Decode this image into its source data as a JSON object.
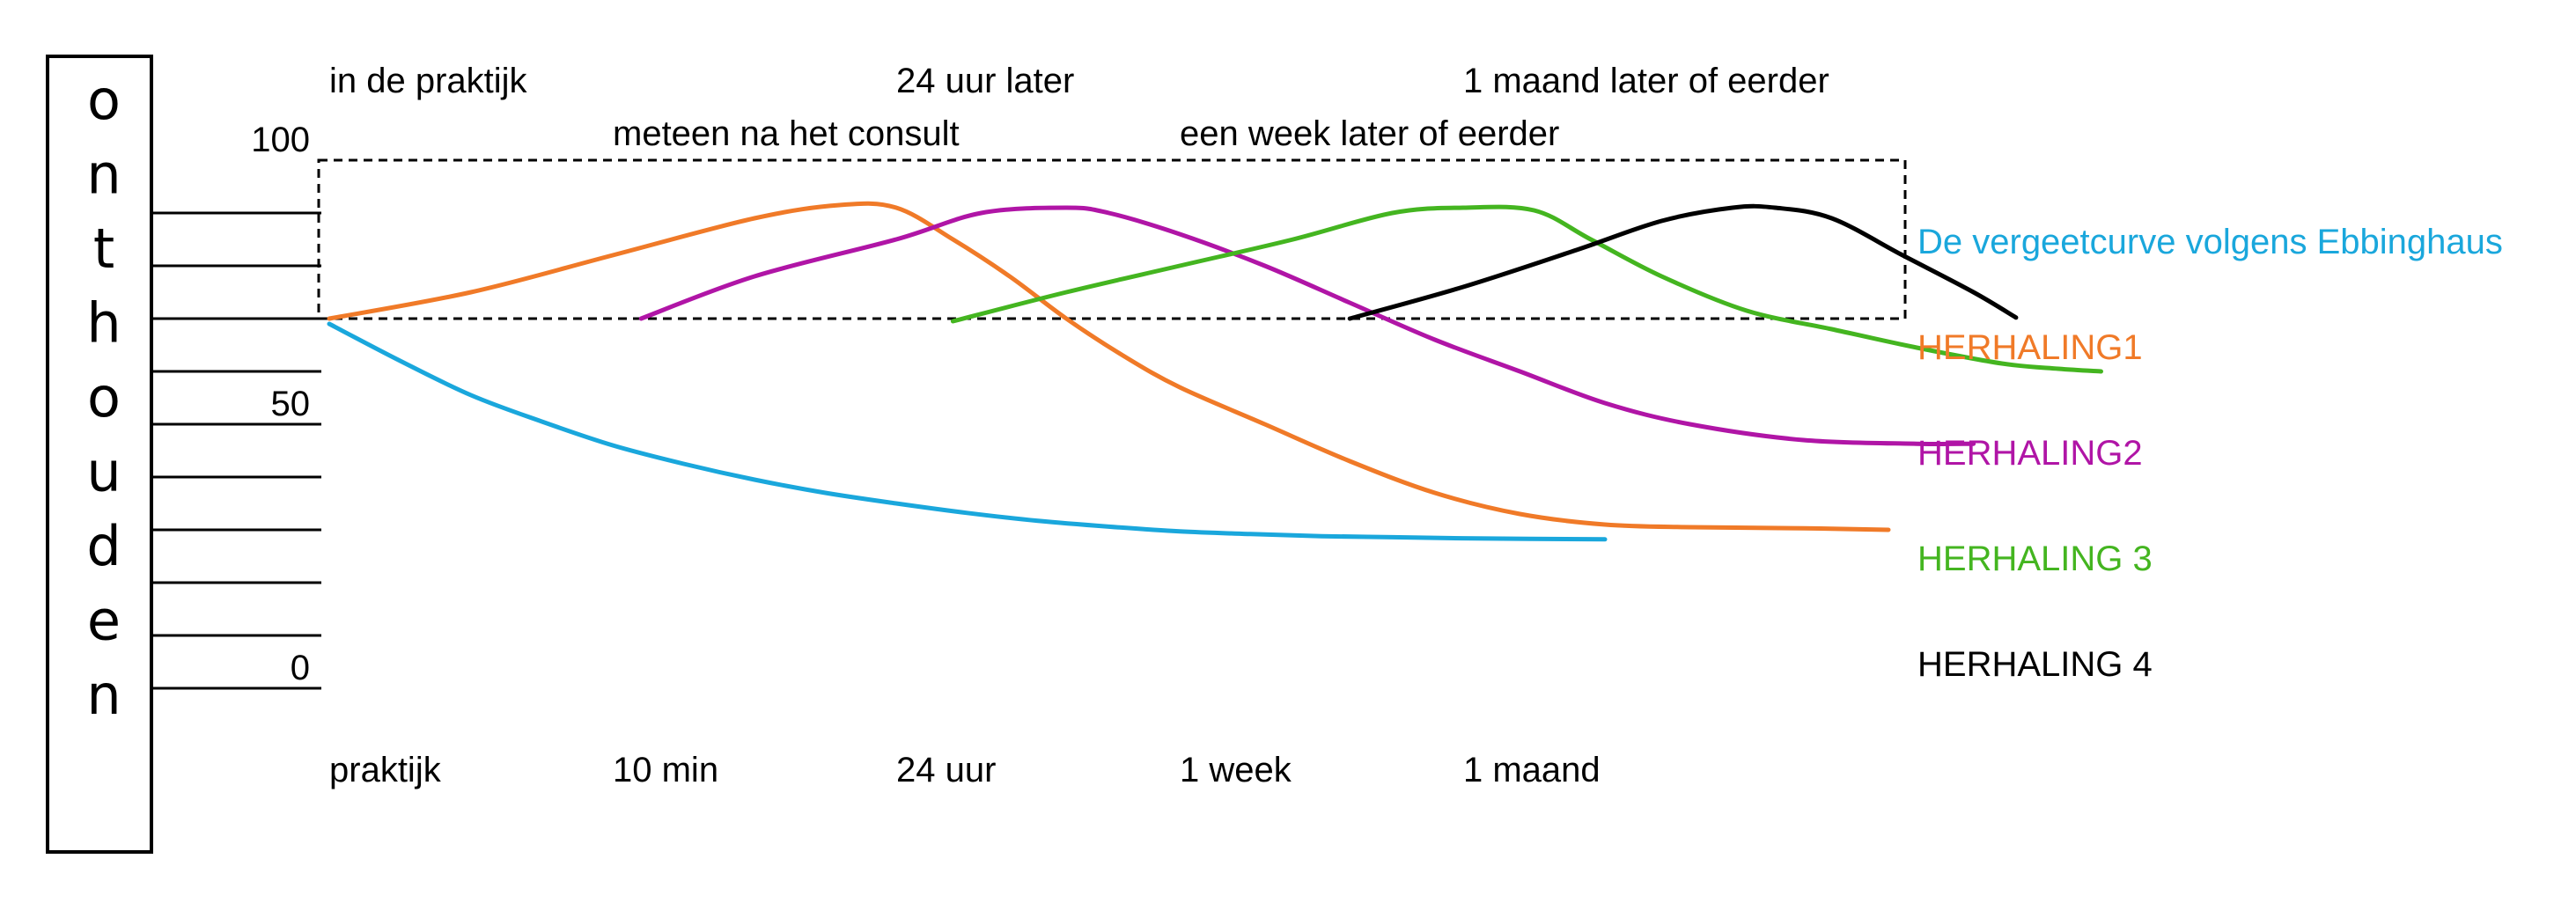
{
  "chart_data": {
    "type": "line",
    "ylabel": "onthouden",
    "ylim": [
      0,
      100
    ],
    "y_ticks": [
      "100",
      "50",
      "0"
    ],
    "y_tick_values": [
      100,
      50,
      0
    ],
    "y_grid_values": [
      0,
      10,
      20,
      30,
      40,
      50,
      60,
      70,
      80,
      90
    ],
    "categories": [
      "praktijk",
      "10 min",
      "24 uur",
      "1 week",
      "1 maand"
    ],
    "top_labels": [
      {
        "text": "in de praktijk",
        "at": 0
      },
      {
        "text": "meteen na het consult",
        "at": 1
      },
      {
        "text": "24 uur later",
        "at": 2
      },
      {
        "text": "een week later of eerder",
        "at": 3
      },
      {
        "text": "1 maand later of eerder",
        "at": 4
      }
    ],
    "box": {
      "x": [
        0,
        5.25
      ],
      "y": [
        70,
        100
      ]
    },
    "series": [
      {
        "name": "De vergeetcurve volgens Ebbinghaus",
        "color": "#1aa7dc",
        "points": [
          [
            0,
            69
          ],
          [
            0.25,
            62
          ],
          [
            0.5,
            55.5
          ],
          [
            0.75,
            50.5
          ],
          [
            1,
            46
          ],
          [
            1.25,
            42.5
          ],
          [
            1.5,
            39.5
          ],
          [
            1.75,
            37
          ],
          [
            2,
            35
          ],
          [
            2.25,
            33.2
          ],
          [
            2.5,
            31.7
          ],
          [
            2.75,
            30.6
          ],
          [
            3,
            29.7
          ],
          [
            3.25,
            29.2
          ],
          [
            3.5,
            28.8
          ],
          [
            3.75,
            28.6
          ],
          [
            4,
            28.4
          ],
          [
            4.5,
            28.2
          ]
        ]
      },
      {
        "name": "HERHALING1",
        "color": "#f07a28",
        "points": [
          [
            0,
            70
          ],
          [
            0.5,
            75
          ],
          [
            1,
            82
          ],
          [
            1.5,
            89
          ],
          [
            1.8,
            91.5
          ],
          [
            2,
            91
          ],
          [
            2.2,
            85
          ],
          [
            2.4,
            78
          ],
          [
            2.6,
            70
          ],
          [
            2.8,
            63
          ],
          [
            3.0,
            57
          ],
          [
            3.3,
            50
          ],
          [
            3.6,
            43
          ],
          [
            3.9,
            37
          ],
          [
            4.2,
            33
          ],
          [
            4.5,
            31
          ],
          [
            4.8,
            30.5
          ],
          [
            5.2,
            30.3
          ],
          [
            5.5,
            30
          ]
        ]
      },
      {
        "name": "HERHALING2",
        "color": "#b015a6",
        "points": [
          [
            1.1,
            70
          ],
          [
            1.5,
            78
          ],
          [
            2,
            85
          ],
          [
            2.3,
            90
          ],
          [
            2.6,
            91
          ],
          [
            2.75,
            90
          ],
          [
            3,
            86
          ],
          [
            3.3,
            80
          ],
          [
            3.6,
            73
          ],
          [
            3.9,
            66
          ],
          [
            4.2,
            60
          ],
          [
            4.5,
            54
          ],
          [
            4.8,
            50
          ],
          [
            5.2,
            47
          ],
          [
            5.6,
            46.3
          ],
          [
            5.8,
            46.3
          ]
        ]
      },
      {
        "name": "HERHALING 3",
        "color": "#44b520",
        "points": [
          [
            2.2,
            69.5
          ],
          [
            2.6,
            75
          ],
          [
            3,
            80
          ],
          [
            3.4,
            85
          ],
          [
            3.75,
            90
          ],
          [
            4,
            91
          ],
          [
            4.25,
            90.5
          ],
          [
            4.45,
            85
          ],
          [
            4.7,
            78
          ],
          [
            5,
            71.5
          ],
          [
            5.3,
            68
          ],
          [
            5.6,
            64.5
          ],
          [
            5.9,
            61.5
          ],
          [
            6.1,
            60.5
          ],
          [
            6.25,
            60
          ]
        ]
      },
      {
        "name": "HERHALING 4",
        "color": "#000000",
        "points": [
          [
            3.6,
            70
          ],
          [
            4,
            76
          ],
          [
            4.4,
            83
          ],
          [
            4.7,
            88.5
          ],
          [
            4.95,
            91
          ],
          [
            5.1,
            91
          ],
          [
            5.3,
            89
          ],
          [
            5.55,
            82
          ],
          [
            5.8,
            75
          ],
          [
            5.95,
            70.2
          ]
        ]
      }
    ],
    "grid": false,
    "legend": "right"
  }
}
